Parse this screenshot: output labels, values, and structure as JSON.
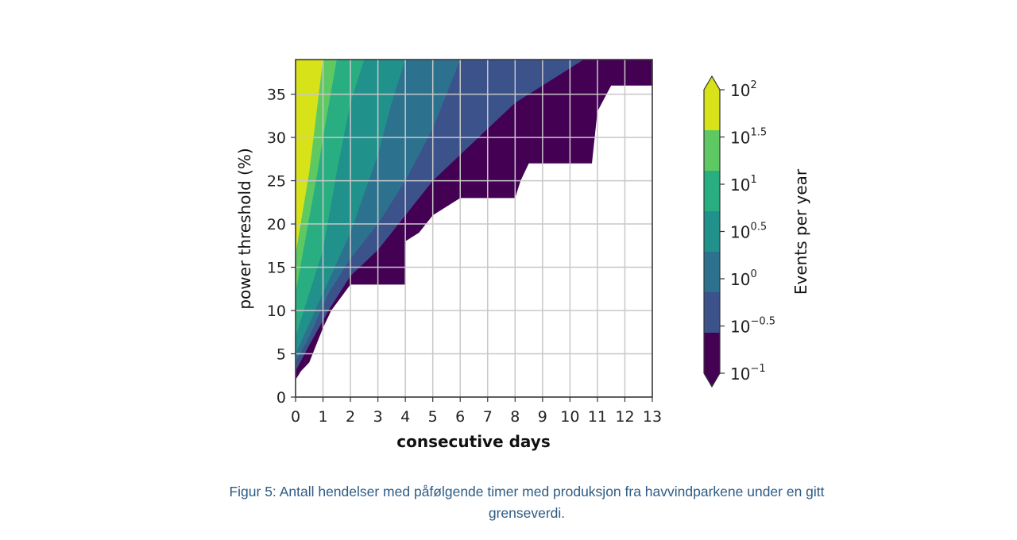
{
  "chart_data": {
    "type": "heatmap",
    "xlabel": "consecutive days",
    "ylabel": "power threshold (%)",
    "xlim": [
      0,
      13
    ],
    "ylim": [
      0,
      39
    ],
    "x_ticks": [
      "0",
      "1",
      "2",
      "3",
      "4",
      "5",
      "6",
      "7",
      "8",
      "9",
      "10",
      "11",
      "12",
      "13"
    ],
    "y_ticks": [
      "0",
      "5",
      "10",
      "15",
      "20",
      "25",
      "30",
      "35"
    ],
    "grid": true,
    "colorbar": {
      "label": "Events per year",
      "scale": "log",
      "extend": "both",
      "ticks": [
        {
          "base": "10",
          "exp": "2"
        },
        {
          "base": "10",
          "exp": "1.5"
        },
        {
          "base": "10",
          "exp": "1"
        },
        {
          "base": "10",
          "exp": "0.5"
        },
        {
          "base": "10",
          "exp": "0"
        },
        {
          "base": "10",
          "exp": "−0.5"
        },
        {
          "base": "10",
          "exp": "−1"
        }
      ],
      "levels": [
        -1,
        -0.5,
        0,
        0.5,
        1,
        1.5,
        2
      ],
      "colors": [
        "#440154",
        "#3b528b",
        "#2c728e",
        "#21918c",
        "#28ae80",
        "#5ec962",
        "#d8e219"
      ]
    },
    "contours": [
      {
        "level": "10^-1",
        "boundary": [
          [
            0,
            2
          ],
          [
            0.2,
            3
          ],
          [
            0.5,
            4
          ],
          [
            1.0,
            8
          ],
          [
            1.3,
            10
          ],
          [
            2.0,
            13
          ],
          [
            4.0,
            13
          ],
          [
            4.0,
            18
          ],
          [
            4.5,
            19
          ],
          [
            5.0,
            21
          ],
          [
            5.5,
            22
          ],
          [
            6.0,
            23
          ],
          [
            8.0,
            23
          ],
          [
            8.2,
            25
          ],
          [
            8.5,
            27
          ],
          [
            10.8,
            27
          ],
          [
            11.0,
            33
          ],
          [
            11.5,
            36
          ],
          [
            13.0,
            36
          ],
          [
            13.0,
            39
          ]
        ]
      },
      {
        "level": "10^-0.5",
        "boundary": [
          [
            0,
            3
          ],
          [
            0.5,
            6
          ],
          [
            1.2,
            10
          ],
          [
            2.0,
            14
          ],
          [
            3.0,
            17
          ],
          [
            4.0,
            21
          ],
          [
            5.0,
            25
          ],
          [
            6.0,
            28
          ],
          [
            7.0,
            31
          ],
          [
            8.0,
            34
          ],
          [
            9.0,
            36
          ],
          [
            10.0,
            38
          ],
          [
            10.5,
            39
          ]
        ]
      },
      {
        "level": "10^0",
        "boundary": [
          [
            0,
            4
          ],
          [
            0.5,
            7
          ],
          [
            1.2,
            12
          ],
          [
            2.0,
            16
          ],
          [
            3.0,
            20
          ],
          [
            4.0,
            25
          ],
          [
            5.0,
            31
          ],
          [
            5.5,
            35
          ],
          [
            6.0,
            39
          ]
        ]
      },
      {
        "level": "10^0.5",
        "boundary": [
          [
            0,
            5
          ],
          [
            1.0,
            12
          ],
          [
            2.0,
            19
          ],
          [
            3.0,
            28
          ],
          [
            3.5,
            34
          ],
          [
            4.0,
            39
          ]
        ]
      },
      {
        "level": "10^1",
        "boundary": [
          [
            0,
            7
          ],
          [
            1.0,
            17
          ],
          [
            1.5,
            26
          ],
          [
            2.0,
            34
          ],
          [
            2.5,
            39
          ]
        ]
      },
      {
        "level": "10^1.5",
        "boundary": [
          [
            0,
            12
          ],
          [
            0.8,
            26
          ],
          [
            1.0,
            30
          ],
          [
            1.5,
            39
          ]
        ]
      },
      {
        "level": "10^2",
        "boundary": [
          [
            0,
            16.5
          ],
          [
            0.5,
            26
          ],
          [
            1.0,
            39
          ]
        ]
      }
    ]
  },
  "caption": {
    "line1": "Figur 5: Antall hendelser med påfølgende timer med produksjon fra havvindparkene under en gitt",
    "line2": "grenseverdi."
  }
}
